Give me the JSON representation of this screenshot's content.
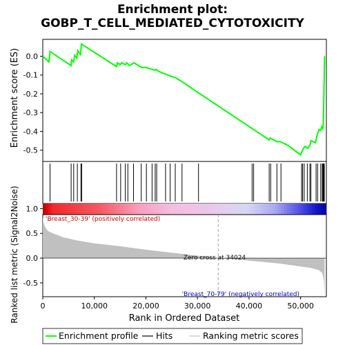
{
  "chart_data": {
    "type": "line",
    "title_line1": "Enrichment plot:",
    "title_line2": "GOBP_T_CELL_MEDIATED_CYTOTOXICITY",
    "es_panel": {
      "ylabel": "Enrichment score (ES)",
      "ylim": [
        -0.56,
        0.09
      ],
      "yticks": [
        0.0,
        -0.1,
        -0.2,
        -0.3,
        -0.4,
        -0.5
      ],
      "ytick_labels": [
        "0.0",
        "-0.1",
        "-0.2",
        "-0.3",
        "-0.4",
        "-0.5"
      ],
      "line_color": "#00ff00",
      "points": [
        [
          0,
          0.0
        ],
        [
          1200,
          -0.03
        ],
        [
          1400,
          0.025
        ],
        [
          5500,
          -0.05
        ],
        [
          5600,
          -0.02
        ],
        [
          6000,
          -0.03
        ],
        [
          6200,
          0.005
        ],
        [
          6600,
          -0.01
        ],
        [
          6800,
          0.03
        ],
        [
          7300,
          0.01
        ],
        [
          7500,
          0.065
        ],
        [
          14300,
          -0.055
        ],
        [
          14500,
          -0.035
        ],
        [
          15000,
          -0.045
        ],
        [
          15300,
          -0.035
        ],
        [
          16000,
          -0.045
        ],
        [
          16300,
          -0.035
        ],
        [
          16800,
          -0.05
        ],
        [
          17700,
          -0.035
        ],
        [
          19200,
          -0.06
        ],
        [
          20000,
          -0.06
        ],
        [
          21200,
          -0.07
        ],
        [
          21700,
          -0.075
        ],
        [
          22000,
          -0.07
        ],
        [
          22400,
          -0.08
        ],
        [
          23800,
          -0.095
        ],
        [
          24700,
          -0.105
        ],
        [
          25800,
          -0.115
        ],
        [
          27000,
          -0.135
        ],
        [
          30200,
          -0.195
        ],
        [
          40600,
          -0.385
        ],
        [
          40900,
          -0.39
        ],
        [
          43900,
          -0.445
        ],
        [
          44100,
          -0.435
        ],
        [
          45400,
          -0.455
        ],
        [
          46100,
          -0.455
        ],
        [
          47600,
          -0.475
        ],
        [
          50000,
          -0.525
        ],
        [
          50300,
          -0.505
        ],
        [
          50600,
          -0.49
        ],
        [
          50800,
          -0.48
        ],
        [
          51400,
          -0.49
        ],
        [
          51800,
          -0.475
        ],
        [
          52000,
          -0.45
        ],
        [
          52900,
          -0.46
        ],
        [
          53100,
          -0.43
        ],
        [
          53400,
          -0.405
        ],
        [
          53600,
          -0.39
        ],
        [
          53900,
          -0.395
        ],
        [
          54100,
          -0.375
        ],
        [
          54300,
          -0.385
        ],
        [
          54400,
          -0.36
        ],
        [
          54450,
          -0.3
        ],
        [
          54500,
          -0.22
        ],
        [
          54550,
          -0.16
        ],
        [
          54600,
          -0.1
        ],
        [
          54650,
          0.0
        ]
      ]
    },
    "hits": [
      1400,
      5500,
      6000,
      6700,
      7400,
      7550,
      14300,
      15100,
      16000,
      16500,
      17600,
      19100,
      20100,
      21200,
      21800,
      22100,
      23800,
      24700,
      25700,
      27000,
      30200,
      40600,
      40900,
      43900,
      44200,
      45400,
      46200,
      50200,
      50400,
      50700,
      51300,
      51800,
      52000,
      53000,
      53300,
      53900,
      54200,
      54350,
      54450,
      54500,
      54550,
      54600
    ],
    "metric_panel": {
      "ylabel": "Ranked list metric (Signal2Noise)",
      "ylim": [
        -0.78,
        0.88
      ],
      "yticks": [
        1.0,
        0.5,
        0.0,
        -0.5
      ],
      "ytick_labels": [
        "1.0",
        "0.5",
        "0.0",
        "-0.5"
      ],
      "xlabel": "Rank in Ordered Dataset",
      "xlim": [
        0,
        55000
      ],
      "xticks": [
        0,
        10000,
        20000,
        30000,
        40000,
        50000
      ],
      "xtick_labels": [
        "0",
        "10,000",
        "20,000",
        "30,000",
        "40,000",
        "50,000"
      ],
      "zero_cross": 34024,
      "zero_cross_label": "Zero cross at 34024",
      "pos_label": "'Breast_30-39' (positively correlated)",
      "neg_label": "'Breast_70-79' (negatively correlated)",
      "curve": [
        [
          0,
          0.85
        ],
        [
          150,
          0.72
        ],
        [
          500,
          0.62
        ],
        [
          1000,
          0.55
        ],
        [
          2000,
          0.5
        ],
        [
          4000,
          0.42
        ],
        [
          7000,
          0.35
        ],
        [
          10000,
          0.3
        ],
        [
          15000,
          0.24
        ],
        [
          20000,
          0.17
        ],
        [
          25000,
          0.11
        ],
        [
          30000,
          0.05
        ],
        [
          34024,
          0.0
        ],
        [
          38000,
          -0.03
        ],
        [
          42000,
          -0.07
        ],
        [
          46000,
          -0.11
        ],
        [
          50000,
          -0.17
        ],
        [
          52000,
          -0.2
        ],
        [
          53500,
          -0.24
        ],
        [
          54200,
          -0.3
        ],
        [
          54500,
          -0.45
        ],
        [
          54650,
          -0.78
        ]
      ]
    },
    "legend": [
      {
        "name": "Enrichment profile",
        "color": "#00ff00"
      },
      {
        "name": "Hits",
        "color": "#000000"
      },
      {
        "name": "Ranking metric scores",
        "color": "#c0c0c0"
      }
    ]
  }
}
